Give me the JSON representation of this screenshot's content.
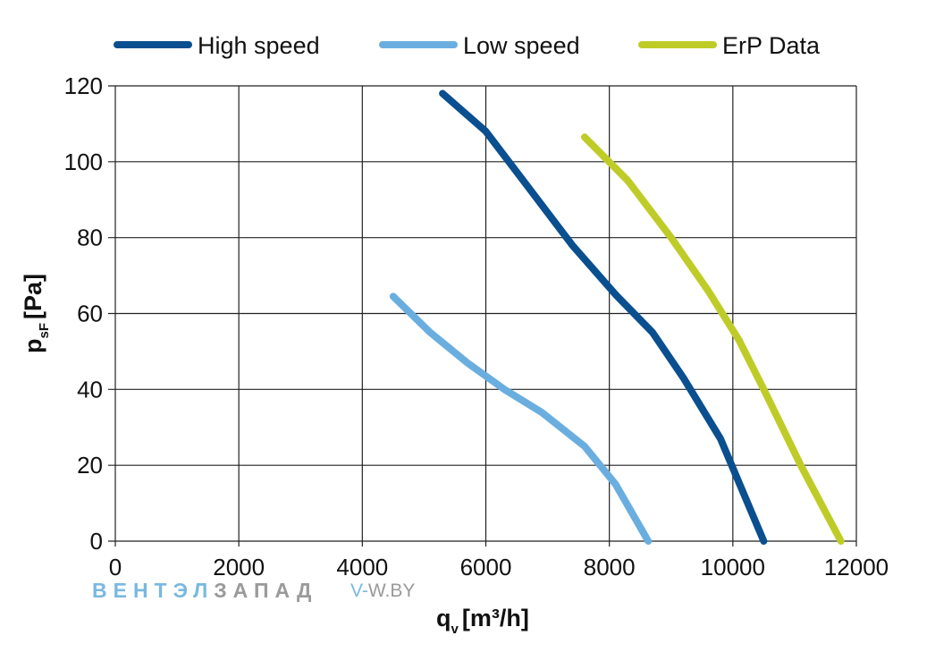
{
  "chart_data": {
    "type": "line",
    "xlabel": "q",
    "xlabel_sub": "v",
    "xlabel_unit": "[m³/h]",
    "ylabel": "p",
    "ylabel_sub": "sF",
    "ylabel_unit": "[Pa]",
    "xlim": [
      0,
      12000
    ],
    "ylim": [
      0,
      120
    ],
    "x_ticks": [
      "0",
      "2000",
      "4000",
      "6000",
      "8000",
      "10000",
      "12000"
    ],
    "y_ticks": [
      "0",
      "20",
      "40",
      "60",
      "80",
      "100",
      "120"
    ],
    "grid": true,
    "legend_position": "top",
    "series": [
      {
        "name": "High speed",
        "color": "#0a4f8f",
        "points": [
          [
            5300,
            118
          ],
          [
            6000,
            108
          ],
          [
            6700,
            93
          ],
          [
            7400,
            78
          ],
          [
            8100,
            65
          ],
          [
            8700,
            55
          ],
          [
            9200,
            43
          ],
          [
            9800,
            27
          ],
          [
            10500,
            0
          ]
        ]
      },
      {
        "name": "Low speed",
        "color": "#6aaee0",
        "points": [
          [
            4500,
            64.5
          ],
          [
            5100,
            55
          ],
          [
            5700,
            47
          ],
          [
            6300,
            40
          ],
          [
            6900,
            34
          ],
          [
            7600,
            25
          ],
          [
            8100,
            15
          ],
          [
            8630,
            0
          ]
        ]
      },
      {
        "name": "ErP Data",
        "color": "#bfcc27",
        "points": [
          [
            7600,
            106.5
          ],
          [
            8300,
            95
          ],
          [
            9000,
            80
          ],
          [
            9600,
            66
          ],
          [
            10100,
            53
          ],
          [
            10500,
            40
          ],
          [
            11100,
            20
          ],
          [
            11750,
            0
          ]
        ]
      }
    ]
  },
  "watermark": {
    "brand_a": "ВЕНТЭЛ",
    "brand_b": "ЗАПАД",
    "url_a": "V-",
    "url_b": "W.BY",
    "color_a": "#7ab8e0",
    "color_b": "#9a9a9a"
  }
}
